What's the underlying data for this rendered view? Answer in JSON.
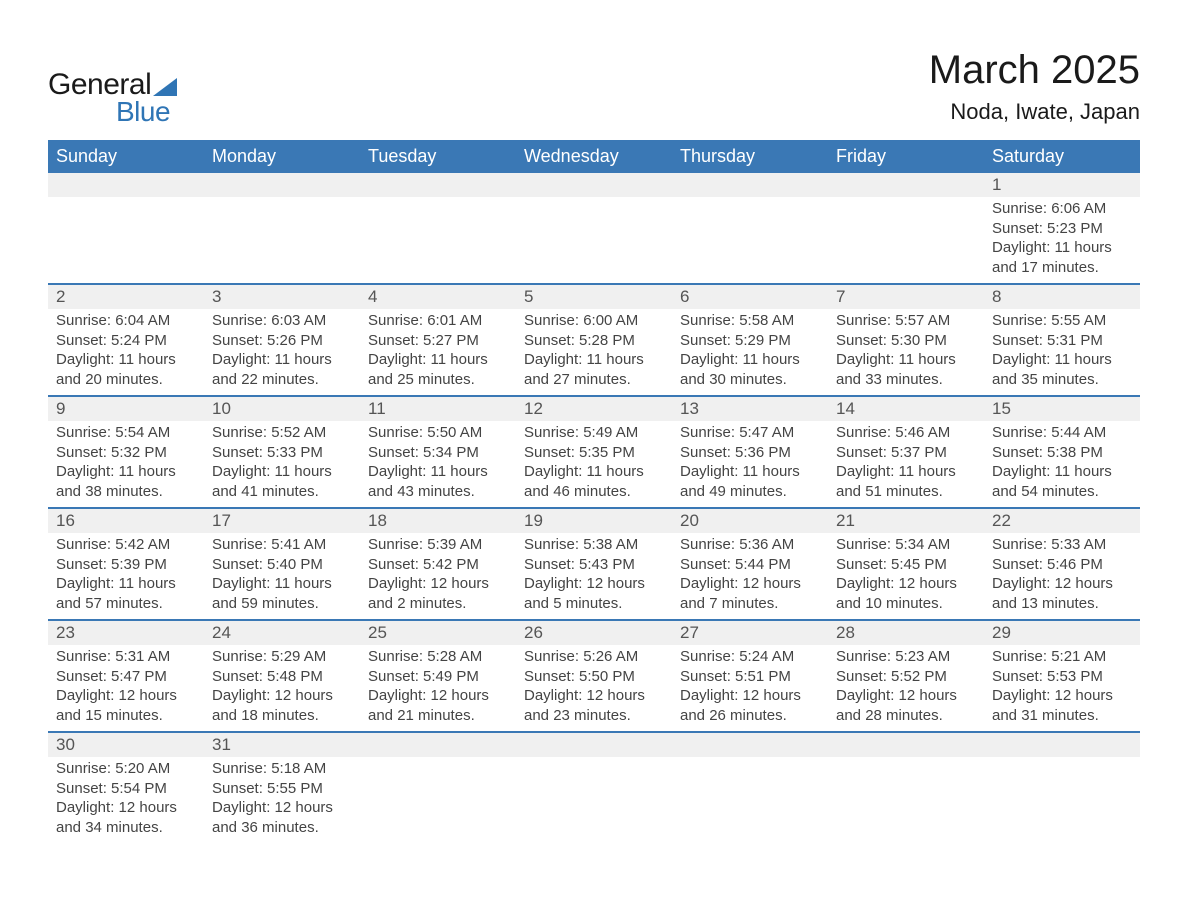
{
  "brand": {
    "word1": "General",
    "word2": "Blue",
    "accent_color": "#2f75b5"
  },
  "title": "March 2025",
  "location": "Noda, Iwate, Japan",
  "colors": {
    "header_bg": "#3a78b5",
    "header_text": "#ffffff",
    "row_separator": "#3a78b5",
    "daynum_bg": "#f0f0f0",
    "text": "#333333",
    "background": "#ffffff"
  },
  "typography": {
    "title_fontsize": 40,
    "location_fontsize": 22,
    "header_fontsize": 18,
    "daynum_fontsize": 17,
    "detail_fontsize": 15
  },
  "day_headers": [
    "Sunday",
    "Monday",
    "Tuesday",
    "Wednesday",
    "Thursday",
    "Friday",
    "Saturday"
  ],
  "weeks": [
    [
      null,
      null,
      null,
      null,
      null,
      null,
      {
        "n": "1",
        "sunrise": "Sunrise: 6:06 AM",
        "sunset": "Sunset: 5:23 PM",
        "d1": "Daylight: 11 hours",
        "d2": "and 17 minutes."
      }
    ],
    [
      {
        "n": "2",
        "sunrise": "Sunrise: 6:04 AM",
        "sunset": "Sunset: 5:24 PM",
        "d1": "Daylight: 11 hours",
        "d2": "and 20 minutes."
      },
      {
        "n": "3",
        "sunrise": "Sunrise: 6:03 AM",
        "sunset": "Sunset: 5:26 PM",
        "d1": "Daylight: 11 hours",
        "d2": "and 22 minutes."
      },
      {
        "n": "4",
        "sunrise": "Sunrise: 6:01 AM",
        "sunset": "Sunset: 5:27 PM",
        "d1": "Daylight: 11 hours",
        "d2": "and 25 minutes."
      },
      {
        "n": "5",
        "sunrise": "Sunrise: 6:00 AM",
        "sunset": "Sunset: 5:28 PM",
        "d1": "Daylight: 11 hours",
        "d2": "and 27 minutes."
      },
      {
        "n": "6",
        "sunrise": "Sunrise: 5:58 AM",
        "sunset": "Sunset: 5:29 PM",
        "d1": "Daylight: 11 hours",
        "d2": "and 30 minutes."
      },
      {
        "n": "7",
        "sunrise": "Sunrise: 5:57 AM",
        "sunset": "Sunset: 5:30 PM",
        "d1": "Daylight: 11 hours",
        "d2": "and 33 minutes."
      },
      {
        "n": "8",
        "sunrise": "Sunrise: 5:55 AM",
        "sunset": "Sunset: 5:31 PM",
        "d1": "Daylight: 11 hours",
        "d2": "and 35 minutes."
      }
    ],
    [
      {
        "n": "9",
        "sunrise": "Sunrise: 5:54 AM",
        "sunset": "Sunset: 5:32 PM",
        "d1": "Daylight: 11 hours",
        "d2": "and 38 minutes."
      },
      {
        "n": "10",
        "sunrise": "Sunrise: 5:52 AM",
        "sunset": "Sunset: 5:33 PM",
        "d1": "Daylight: 11 hours",
        "d2": "and 41 minutes."
      },
      {
        "n": "11",
        "sunrise": "Sunrise: 5:50 AM",
        "sunset": "Sunset: 5:34 PM",
        "d1": "Daylight: 11 hours",
        "d2": "and 43 minutes."
      },
      {
        "n": "12",
        "sunrise": "Sunrise: 5:49 AM",
        "sunset": "Sunset: 5:35 PM",
        "d1": "Daylight: 11 hours",
        "d2": "and 46 minutes."
      },
      {
        "n": "13",
        "sunrise": "Sunrise: 5:47 AM",
        "sunset": "Sunset: 5:36 PM",
        "d1": "Daylight: 11 hours",
        "d2": "and 49 minutes."
      },
      {
        "n": "14",
        "sunrise": "Sunrise: 5:46 AM",
        "sunset": "Sunset: 5:37 PM",
        "d1": "Daylight: 11 hours",
        "d2": "and 51 minutes."
      },
      {
        "n": "15",
        "sunrise": "Sunrise: 5:44 AM",
        "sunset": "Sunset: 5:38 PM",
        "d1": "Daylight: 11 hours",
        "d2": "and 54 minutes."
      }
    ],
    [
      {
        "n": "16",
        "sunrise": "Sunrise: 5:42 AM",
        "sunset": "Sunset: 5:39 PM",
        "d1": "Daylight: 11 hours",
        "d2": "and 57 minutes."
      },
      {
        "n": "17",
        "sunrise": "Sunrise: 5:41 AM",
        "sunset": "Sunset: 5:40 PM",
        "d1": "Daylight: 11 hours",
        "d2": "and 59 minutes."
      },
      {
        "n": "18",
        "sunrise": "Sunrise: 5:39 AM",
        "sunset": "Sunset: 5:42 PM",
        "d1": "Daylight: 12 hours",
        "d2": "and 2 minutes."
      },
      {
        "n": "19",
        "sunrise": "Sunrise: 5:38 AM",
        "sunset": "Sunset: 5:43 PM",
        "d1": "Daylight: 12 hours",
        "d2": "and 5 minutes."
      },
      {
        "n": "20",
        "sunrise": "Sunrise: 5:36 AM",
        "sunset": "Sunset: 5:44 PM",
        "d1": "Daylight: 12 hours",
        "d2": "and 7 minutes."
      },
      {
        "n": "21",
        "sunrise": "Sunrise: 5:34 AM",
        "sunset": "Sunset: 5:45 PM",
        "d1": "Daylight: 12 hours",
        "d2": "and 10 minutes."
      },
      {
        "n": "22",
        "sunrise": "Sunrise: 5:33 AM",
        "sunset": "Sunset: 5:46 PM",
        "d1": "Daylight: 12 hours",
        "d2": "and 13 minutes."
      }
    ],
    [
      {
        "n": "23",
        "sunrise": "Sunrise: 5:31 AM",
        "sunset": "Sunset: 5:47 PM",
        "d1": "Daylight: 12 hours",
        "d2": "and 15 minutes."
      },
      {
        "n": "24",
        "sunrise": "Sunrise: 5:29 AM",
        "sunset": "Sunset: 5:48 PM",
        "d1": "Daylight: 12 hours",
        "d2": "and 18 minutes."
      },
      {
        "n": "25",
        "sunrise": "Sunrise: 5:28 AM",
        "sunset": "Sunset: 5:49 PM",
        "d1": "Daylight: 12 hours",
        "d2": "and 21 minutes."
      },
      {
        "n": "26",
        "sunrise": "Sunrise: 5:26 AM",
        "sunset": "Sunset: 5:50 PM",
        "d1": "Daylight: 12 hours",
        "d2": "and 23 minutes."
      },
      {
        "n": "27",
        "sunrise": "Sunrise: 5:24 AM",
        "sunset": "Sunset: 5:51 PM",
        "d1": "Daylight: 12 hours",
        "d2": "and 26 minutes."
      },
      {
        "n": "28",
        "sunrise": "Sunrise: 5:23 AM",
        "sunset": "Sunset: 5:52 PM",
        "d1": "Daylight: 12 hours",
        "d2": "and 28 minutes."
      },
      {
        "n": "29",
        "sunrise": "Sunrise: 5:21 AM",
        "sunset": "Sunset: 5:53 PM",
        "d1": "Daylight: 12 hours",
        "d2": "and 31 minutes."
      }
    ],
    [
      {
        "n": "30",
        "sunrise": "Sunrise: 5:20 AM",
        "sunset": "Sunset: 5:54 PM",
        "d1": "Daylight: 12 hours",
        "d2": "and 34 minutes."
      },
      {
        "n": "31",
        "sunrise": "Sunrise: 5:18 AM",
        "sunset": "Sunset: 5:55 PM",
        "d1": "Daylight: 12 hours",
        "d2": "and 36 minutes."
      },
      null,
      null,
      null,
      null,
      null
    ]
  ]
}
